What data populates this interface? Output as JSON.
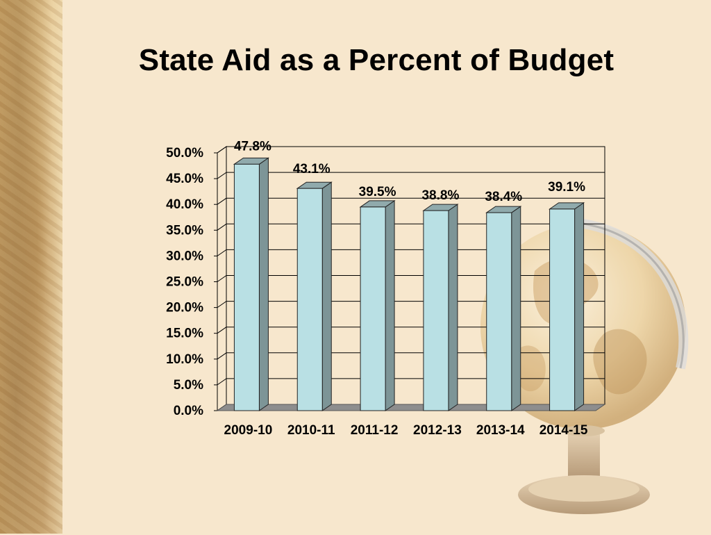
{
  "slide": {
    "title": "State Aid as a Percent of Budget"
  },
  "colors": {
    "background": "#f7e7cd",
    "bar_front": "#b9e0e4",
    "bar_side": "#7d9597",
    "bar_top": "#90aaac",
    "floor": "#8e8e8e",
    "gridline": "#000000"
  },
  "chart_data": {
    "type": "bar",
    "categories": [
      "2009-10",
      "2010-11",
      "2011-12",
      "2012-13",
      "2013-14",
      "2014-15"
    ],
    "values": [
      47.8,
      43.1,
      39.5,
      38.8,
      38.4,
      39.1
    ],
    "data_labels": [
      "47.8%",
      "43.1%",
      "39.5%",
      "38.8%",
      "38.4%",
      "39.1%"
    ],
    "yticks": [
      "0.0%",
      "5.0%",
      "10.0%",
      "15.0%",
      "20.0%",
      "25.0%",
      "30.0%",
      "35.0%",
      "40.0%",
      "45.0%",
      "50.0%"
    ],
    "ylim": [
      0,
      50
    ],
    "grid": true,
    "style": "3d-column"
  }
}
